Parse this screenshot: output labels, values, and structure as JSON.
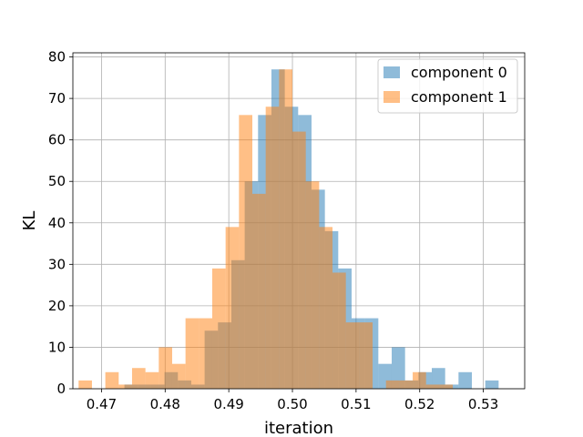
{
  "chart_data": {
    "type": "histogram",
    "xlabel": "iteration",
    "ylabel": "KL",
    "xlim": [
      0.4655,
      0.5365
    ],
    "ylim": [
      0,
      81
    ],
    "xticks": [
      0.47,
      0.48,
      0.49,
      0.5,
      0.51,
      0.52,
      0.53
    ],
    "xtick_labels": [
      "0.47",
      "0.48",
      "0.49",
      "0.50",
      "0.51",
      "0.52",
      "0.53"
    ],
    "yticks": [
      0,
      10,
      20,
      30,
      40,
      50,
      60,
      70,
      80
    ],
    "ytick_labels": [
      "0",
      "10",
      "20",
      "30",
      "40",
      "50",
      "60",
      "70",
      "80"
    ],
    "grid": true,
    "legend_position": "top-right",
    "series": [
      {
        "name": "component 0",
        "color": "#1f77b4",
        "alpha": 0.5,
        "bin_width": 0.0021,
        "bin_starts": [
          0.4736,
          0.4757,
          0.4778,
          0.4799,
          0.482,
          0.4841,
          0.4862,
          0.4883,
          0.4904,
          0.4925,
          0.4946,
          0.4967,
          0.4988,
          0.5009,
          0.503,
          0.5051,
          0.5072,
          0.5093,
          0.5114,
          0.5135,
          0.5156,
          0.5177,
          0.5198,
          0.5219,
          0.524,
          0.5261,
          0.5282,
          0.5303
        ],
        "values": [
          1,
          1,
          1,
          4,
          2,
          1,
          14,
          16,
          31,
          50,
          66,
          77,
          68,
          66,
          48,
          38,
          29,
          17,
          17,
          6,
          10,
          2,
          4,
          5,
          1,
          4,
          0,
          2
        ]
      },
      {
        "name": "component 1",
        "color": "#ff7f0e",
        "alpha": 0.5,
        "bin_width": 0.0021,
        "bin_starts": [
          0.4664,
          0.4685,
          0.4706,
          0.4727,
          0.4748,
          0.4769,
          0.479,
          0.4811,
          0.4832,
          0.4853,
          0.4874,
          0.4895,
          0.4916,
          0.4937,
          0.4958,
          0.4979,
          0.5,
          0.5021,
          0.5042,
          0.5063,
          0.5084,
          0.5105,
          0.5126,
          0.5147,
          0.5168,
          0.5189,
          0.521,
          0.5231
        ],
        "values": [
          2,
          0,
          4,
          1,
          5,
          4,
          10,
          6,
          17,
          17,
          29,
          39,
          66,
          47,
          68,
          77,
          62,
          50,
          39,
          28,
          16,
          16,
          0,
          2,
          2,
          4,
          1,
          1
        ]
      }
    ]
  }
}
